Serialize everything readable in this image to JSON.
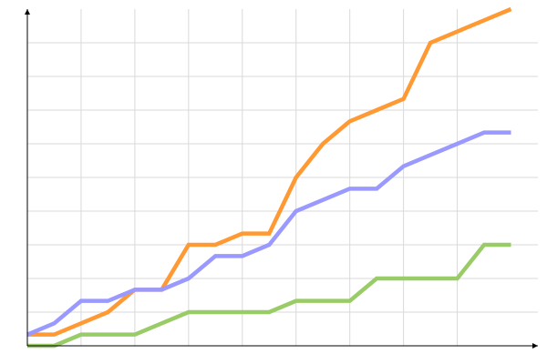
{
  "chart_data": {
    "type": "line",
    "title": "",
    "xlabel": "",
    "ylabel": "",
    "x": [
      0,
      1,
      2,
      3,
      4,
      5,
      6,
      7,
      8,
      9,
      10,
      11,
      12,
      13,
      14,
      15,
      16,
      17,
      18
    ],
    "xlim": [
      0,
      19
    ],
    "ylim": [
      0,
      30
    ],
    "grid": true,
    "x_grid_step": 2,
    "y_grid_step": 3,
    "axis_color": "#000000",
    "grid_color": "#d9d9d9",
    "series": [
      {
        "color": "#ff9933",
        "values": [
          1,
          1,
          2,
          3,
          5,
          5,
          9,
          9,
          10,
          10,
          15,
          18,
          20,
          21,
          22,
          27,
          28,
          29,
          30
        ]
      },
      {
        "color": "#9999ff",
        "values": [
          1,
          2,
          4,
          4,
          5,
          5,
          6,
          8,
          8,
          9,
          12,
          13,
          14,
          14,
          16,
          17,
          18,
          19,
          19
        ]
      },
      {
        "color": "#99cc66",
        "values": [
          0,
          0,
          1,
          1,
          1,
          2,
          3,
          3,
          3,
          3,
          4,
          4,
          4,
          6,
          6,
          6,
          6,
          9,
          9
        ]
      }
    ]
  }
}
